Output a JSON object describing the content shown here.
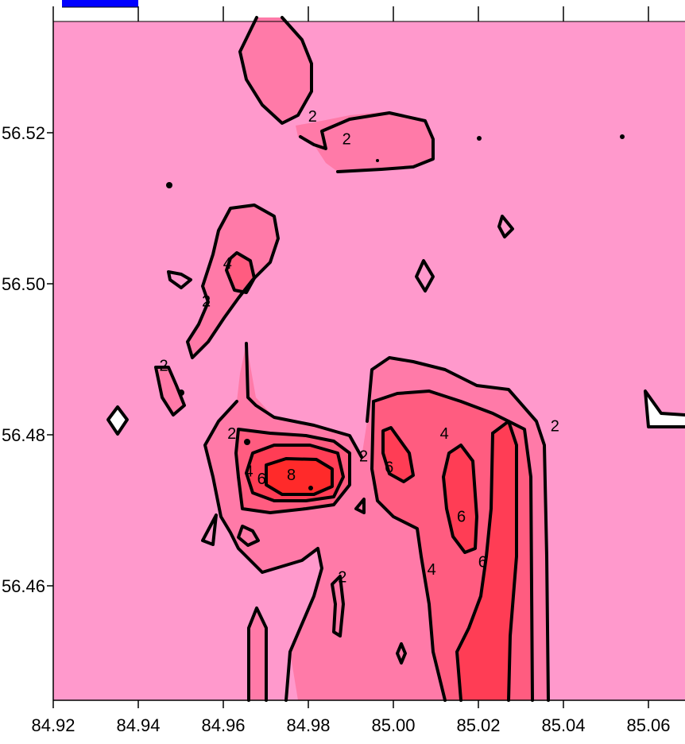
{
  "chart_data": {
    "type": "contour",
    "title": "",
    "xlabel": "",
    "ylabel": "",
    "xlim": [
      84.92,
      85.07
    ],
    "ylim": [
      56.445,
      56.535
    ],
    "x_ticks": [
      "84.92",
      "84.94",
      "84.96",
      "84.98",
      "85.00",
      "85.02",
      "85.04",
      "85.06"
    ],
    "y_ticks": [
      "56.46",
      "56.48",
      "56.50",
      "56.52"
    ],
    "contour_levels": [
      2,
      4,
      6,
      8
    ],
    "level_colors": {
      "background": "#ff99cc",
      "2": "#ff7aa8",
      "4": "#ff5c80",
      "6": "#ff3d55",
      "8": "#ff2a2a"
    },
    "top_legend_color": "#0000ff",
    "contour_labels": [
      {
        "text": "2",
        "x": 84.981,
        "y": 56.5215
      },
      {
        "text": "2",
        "x": 84.989,
        "y": 56.5185
      },
      {
        "text": "4",
        "x": 84.961,
        "y": 56.502
      },
      {
        "text": "2",
        "x": 84.956,
        "y": 56.497
      },
      {
        "text": "2",
        "x": 84.946,
        "y": 56.4885
      },
      {
        "text": "2",
        "x": 84.962,
        "y": 56.4795
      },
      {
        "text": "4",
        "x": 84.966,
        "y": 56.4745
      },
      {
        "text": "6",
        "x": 84.969,
        "y": 56.4735
      },
      {
        "text": "8",
        "x": 84.976,
        "y": 56.474
      },
      {
        "text": "2",
        "x": 84.993,
        "y": 56.4765
      },
      {
        "text": "6",
        "x": 84.999,
        "y": 56.475
      },
      {
        "text": "4",
        "x": 85.012,
        "y": 56.4795
      },
      {
        "text": "2",
        "x": 85.038,
        "y": 56.4805
      },
      {
        "text": "6",
        "x": 85.016,
        "y": 56.4685
      },
      {
        "text": "4",
        "x": 85.009,
        "y": 56.4615
      },
      {
        "text": "6",
        "x": 85.021,
        "y": 56.4625
      },
      {
        "text": "2",
        "x": 84.988,
        "y": 56.4605
      }
    ]
  }
}
